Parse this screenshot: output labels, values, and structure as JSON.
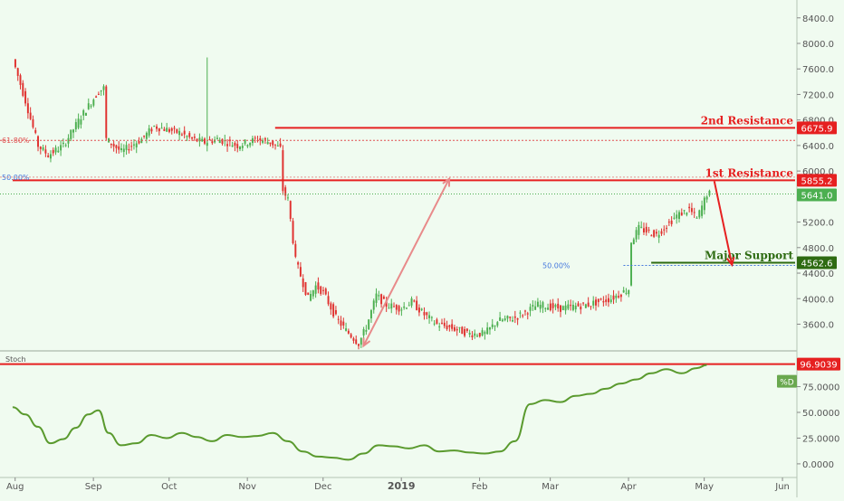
{
  "colors": {
    "background": "#f0fbf0",
    "bull": "#4caf50",
    "bear": "#e0312f",
    "resistance": "#e62020",
    "support": "#2e6b12",
    "stoch": "#5a9a2e",
    "arrow_pink": "#e88a8a",
    "fib_red": "#e05050",
    "fib_blue": "#4477dd",
    "axis_text": "#555555"
  },
  "chart_data": [
    {
      "type": "candlestick",
      "x_tick_labels": [
        "Aug",
        "Sep",
        "Oct",
        "Nov",
        "Dec",
        "2019",
        "Feb",
        "Mar",
        "Apr",
        "May",
        "Jun"
      ],
      "y_ticks": [
        3600,
        4000,
        4400,
        4800,
        5200,
        5600,
        6000,
        6400,
        6800,
        7200,
        7600,
        8000,
        8400
      ],
      "y_tick_labels": [
        "3600.0",
        "4000.0",
        "4400.0",
        "4800.0",
        "5200.0",
        "5600.0",
        "6000.0",
        "6400.0",
        "6800.0",
        "7200.0",
        "7600.0",
        "8000.0",
        "8400.0"
      ],
      "ylim": [
        3210,
        8680
      ],
      "price_path": [
        [
          "2018-07-31",
          7750
        ],
        [
          "2018-08-05",
          7100
        ],
        [
          "2018-08-10",
          6400
        ],
        [
          "2018-08-14",
          6250
        ],
        [
          "2018-08-20",
          6400
        ],
        [
          "2018-08-27",
          6850
        ],
        [
          "2018-09-03",
          7250
        ],
        [
          "2018-09-05",
          7300
        ],
        [
          "2018-09-06",
          6500
        ],
        [
          "2018-09-12",
          6300
        ],
        [
          "2018-09-20",
          6500
        ],
        [
          "2018-09-25",
          6700
        ],
        [
          "2018-10-05",
          6600
        ],
        [
          "2018-10-10",
          6500
        ],
        [
          "2018-10-15",
          6450
        ],
        [
          "2018-10-20",
          6500
        ],
        [
          "2018-10-28",
          6400
        ],
        [
          "2018-11-05",
          6500
        ],
        [
          "2018-11-10",
          6450
        ],
        [
          "2018-11-14",
          6350
        ],
        [
          "2018-11-15",
          5700
        ],
        [
          "2018-11-17",
          5550
        ],
        [
          "2018-11-20",
          4600
        ],
        [
          "2018-11-25",
          4000
        ],
        [
          "2018-11-28",
          4200
        ],
        [
          "2018-12-01",
          4100
        ],
        [
          "2018-12-06",
          3700
        ],
        [
          "2018-12-10",
          3500
        ],
        [
          "2018-12-15",
          3300
        ],
        [
          "2018-12-18",
          3550
        ],
        [
          "2018-12-22",
          4050
        ],
        [
          "2018-12-26",
          3900
        ],
        [
          "2019-01-01",
          3850
        ],
        [
          "2019-01-05",
          3950
        ],
        [
          "2019-01-10",
          3750
        ],
        [
          "2019-01-15",
          3600
        ],
        [
          "2019-01-20",
          3550
        ],
        [
          "2019-01-28",
          3450
        ],
        [
          "2019-02-03",
          3450
        ],
        [
          "2019-02-08",
          3650
        ],
        [
          "2019-02-15",
          3700
        ],
        [
          "2019-02-24",
          3900
        ],
        [
          "2019-03-05",
          3850
        ],
        [
          "2019-03-15",
          3900
        ],
        [
          "2019-03-25",
          4000
        ],
        [
          "2019-04-01",
          4150
        ],
        [
          "2019-04-02",
          4900
        ],
        [
          "2019-04-05",
          5100
        ],
        [
          "2019-04-12",
          5000
        ],
        [
          "2019-04-20",
          5300
        ],
        [
          "2019-04-25",
          5400
        ],
        [
          "2019-04-28",
          5250
        ],
        [
          "2019-05-02",
          5641
        ]
      ],
      "levels": [
        {
          "label": "2nd Resistance",
          "value": "6675.9",
          "y": 6675.9,
          "x_start": "2018-11-12"
        },
        {
          "label": "1st Resistance",
          "value": "5855.2",
          "y": 5855.2,
          "x_start": "2018-07-31"
        },
        {
          "label": "Major Support",
          "value": "4562.6",
          "y": 4562.6,
          "x_start": "2019-04-10"
        }
      ],
      "last_price": {
        "value": "5641.0",
        "y": 5641
      },
      "fib_618": {
        "label": "61.80%",
        "y": 6480
      },
      "fib_50_top": {
        "label": "50.00%",
        "y": 5905
      },
      "fib_50_support": {
        "label": "50.00%",
        "y": 4520
      },
      "arrows": [
        {
          "from": [
            "2018-12-17",
            3260
          ],
          "to": [
            "2019-01-20",
            5880
          ],
          "color": "pink"
        },
        {
          "from": [
            "2019-05-05",
            5840
          ],
          "to": [
            "2019-05-12",
            4530
          ],
          "color": "red"
        }
      ]
    },
    {
      "type": "line",
      "indicator": "Stoch",
      "series_label": "%D",
      "y_ticks": [
        0,
        25,
        50,
        75
      ],
      "y_tick_labels": [
        "0.0000",
        "25.0000",
        "50.0000",
        "75.0000"
      ],
      "ylim": [
        -8,
        108
      ],
      "resistance_label": "96.9039",
      "resistance_y": 96.9,
      "x": [
        "2018-07-31",
        "2018-08-05",
        "2018-08-10",
        "2018-08-15",
        "2018-08-20",
        "2018-08-25",
        "2018-08-30",
        "2018-09-03",
        "2018-09-07",
        "2018-09-12",
        "2018-09-18",
        "2018-09-24",
        "2018-09-30",
        "2018-10-06",
        "2018-10-12",
        "2018-10-18",
        "2018-10-24",
        "2018-10-30",
        "2018-11-05",
        "2018-11-11",
        "2018-11-17",
        "2018-11-23",
        "2018-11-29",
        "2018-12-05",
        "2018-12-11",
        "2018-12-17",
        "2018-12-23",
        "2018-12-29",
        "2019-01-04",
        "2019-01-10",
        "2019-01-16",
        "2019-01-22",
        "2019-01-28",
        "2019-02-03",
        "2019-02-09",
        "2019-02-15",
        "2019-02-21",
        "2019-02-27",
        "2019-03-05",
        "2019-03-11",
        "2019-03-17",
        "2019-03-23",
        "2019-03-29",
        "2019-04-04",
        "2019-04-10",
        "2019-04-16",
        "2019-04-22",
        "2019-04-28",
        "2019-05-02"
      ],
      "values": [
        55,
        48,
        36,
        20,
        24,
        35,
        48,
        52,
        30,
        18,
        20,
        28,
        25,
        30,
        26,
        22,
        28,
        26,
        27,
        30,
        22,
        12,
        7,
        6,
        4,
        10,
        18,
        17,
        15,
        18,
        12,
        13,
        11,
        10,
        12,
        22,
        58,
        62,
        60,
        66,
        68,
        73,
        78,
        82,
        88,
        92,
        88,
        93,
        96
      ]
    }
  ]
}
